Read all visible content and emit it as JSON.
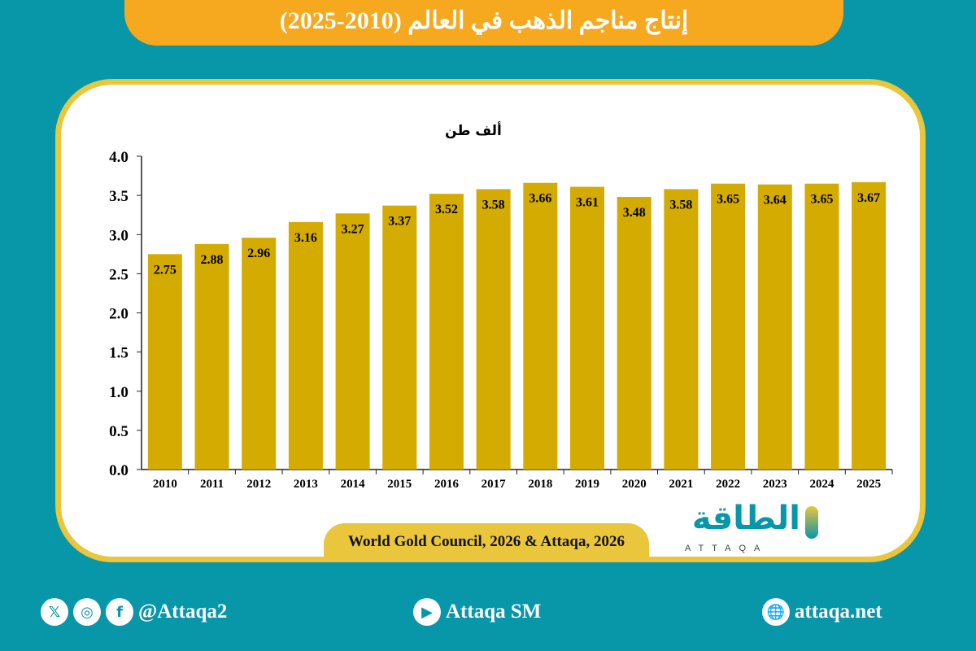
{
  "title": "إنتاج مناجم الذهب في العالم (2010-2025)",
  "source": "World Gold Council, 2026 & Attaqa, 2026",
  "logo": {
    "arabic": "الطاقة",
    "english": "ATTAQA"
  },
  "footer": {
    "social_handle": "@Attaqa2",
    "youtube": "Attaqa SM",
    "website": "attaqa.net"
  },
  "colors": {
    "background": "#0896a9",
    "title": "#f6a91f",
    "bar": "#d4ab00",
    "border": "#e9c63c"
  },
  "chart_data": {
    "type": "bar",
    "title": "",
    "ylabel": "ألف طن",
    "xlabel": "",
    "categories": [
      "2010",
      "2011",
      "2012",
      "2013",
      "2014",
      "2015",
      "2016",
      "2017",
      "2018",
      "2019",
      "2020",
      "2021",
      "2022",
      "2023",
      "2024",
      "2025"
    ],
    "values": [
      2.75,
      2.88,
      2.96,
      3.16,
      3.27,
      3.37,
      3.52,
      3.58,
      3.66,
      3.61,
      3.48,
      3.58,
      3.65,
      3.64,
      3.65,
      3.67
    ],
    "value_labels": [
      "2.75",
      "2.88",
      "2.96",
      "3.16",
      "3.27",
      "3.37",
      "3.52",
      "3.58",
      "3.66",
      "3.61",
      "3.48",
      "3.58",
      "3.65",
      "3.64",
      "3.65",
      "3.67"
    ],
    "ylim": [
      0,
      4
    ],
    "yticks": [
      "0.0",
      "0.5",
      "1.0",
      "1.5",
      "2.0",
      "2.5",
      "3.0",
      "3.5",
      "4.0"
    ],
    "grid": false
  }
}
